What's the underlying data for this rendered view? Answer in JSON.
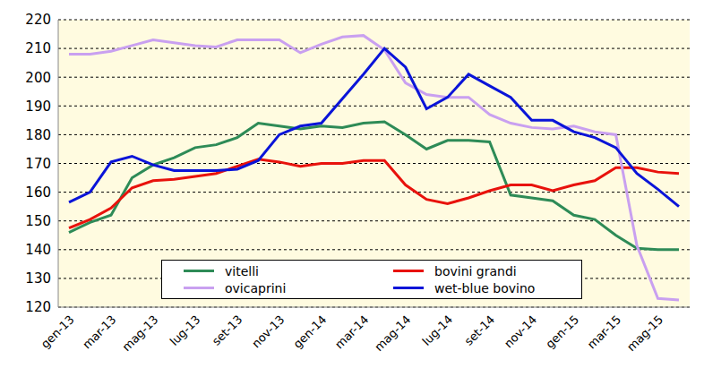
{
  "chart_data": {
    "type": "line",
    "categories": [
      "gen-13",
      null,
      "mar-13",
      null,
      "mag-13",
      null,
      "lug-13",
      null,
      "set-13",
      null,
      "nov-13",
      null,
      "gen-14",
      null,
      "mar-14",
      null,
      "mag-14",
      null,
      "lug-14",
      null,
      "set-14",
      null,
      "nov-14",
      null,
      "gen-15",
      null,
      "mar-15",
      null,
      "mag-15",
      null
    ],
    "series": [
      {
        "name": "vitelli",
        "color": "#2e8b57",
        "values": [
          146,
          149.5,
          152,
          165,
          169.5,
          172,
          175.5,
          176.5,
          179,
          184,
          183,
          182,
          183,
          182.5,
          184,
          184.5,
          180,
          175,
          178,
          178,
          177.5,
          159,
          158,
          157,
          152,
          150.5,
          145,
          140.5,
          140,
          140
        ]
      },
      {
        "name": "bovini grandi",
        "color": "#e8120c",
        "values": [
          147.5,
          150.5,
          154.5,
          161.5,
          164,
          164.5,
          165.5,
          166.5,
          169,
          171.5,
          170.5,
          169,
          170,
          170,
          171,
          171,
          162.5,
          157.5,
          156,
          158,
          160.5,
          162.5,
          162.5,
          160.5,
          162.5,
          164,
          168.5,
          168.5,
          167,
          166.5
        ]
      },
      {
        "name": "ovicaprini",
        "color": "#c9a0f0",
        "values": [
          208,
          208,
          209,
          211,
          213,
          212,
          211,
          210.5,
          213,
          213,
          213,
          208.5,
          211.5,
          214,
          214.5,
          209.5,
          198,
          194,
          193,
          193,
          187,
          184,
          182.5,
          182,
          183,
          181,
          180,
          141.5,
          123,
          122.5
        ]
      },
      {
        "name": "wet-blue bovino",
        "color": "#0a14d8",
        "values": [
          156.5,
          160,
          170.5,
          172.5,
          169.5,
          167.5,
          167.5,
          167.5,
          168,
          171,
          180,
          183,
          184,
          192.5,
          201,
          210,
          203.5,
          189,
          193,
          201,
          197,
          193,
          185,
          185,
          181,
          179,
          175.5,
          166.5,
          161,
          155
        ]
      }
    ],
    "ylim": [
      120,
      220
    ],
    "yticks": [
      120,
      130,
      140,
      150,
      160,
      170,
      180,
      190,
      200,
      210,
      220
    ],
    "grid": true,
    "legend": "bottom"
  }
}
